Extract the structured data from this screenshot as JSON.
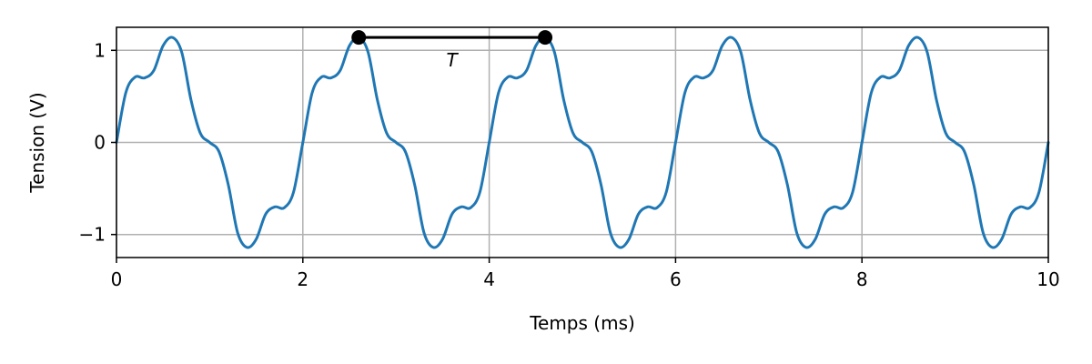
{
  "chart_data": {
    "type": "line",
    "title": "",
    "xlabel": "Temps (ms)",
    "ylabel": "Tension (V)",
    "xlim": [
      0,
      10
    ],
    "ylim": [
      -1.25,
      1.25
    ],
    "x_ticks": [
      {
        "value": 0,
        "label": "0"
      },
      {
        "value": 2,
        "label": "2"
      },
      {
        "value": 4,
        "label": "4"
      },
      {
        "value": 6,
        "label": "6"
      },
      {
        "value": 8,
        "label": "8"
      },
      {
        "value": 10,
        "label": "10"
      }
    ],
    "y_ticks": [
      {
        "value": -1,
        "label": "−1"
      },
      {
        "value": 0,
        "label": "0"
      },
      {
        "value": 1,
        "label": "1"
      }
    ],
    "grid": true,
    "series": [
      {
        "color": "#1f77b4",
        "period": 2,
        "x": [
          0,
          0.1,
          0.2,
          0.3,
          0.4,
          0.5,
          0.6,
          0.7,
          0.8,
          0.9,
          1.0,
          1.1,
          1.2,
          1.3,
          1.4,
          1.5,
          1.6,
          1.7,
          1.8,
          1.9,
          2.0
        ],
        "y": [
          0,
          0.54,
          0.71,
          0.7,
          0.78,
          1.05,
          1.14,
          0.98,
          0.46,
          0.1,
          0,
          -0.1,
          -0.46,
          -0.98,
          -1.14,
          -1.05,
          -0.78,
          -0.7,
          -0.71,
          -0.54,
          0
        ]
      }
    ],
    "annotation": {
      "label": "T",
      "x_start": 2.6,
      "x_end": 4.6,
      "y": 1.14,
      "color": "#000000"
    }
  }
}
